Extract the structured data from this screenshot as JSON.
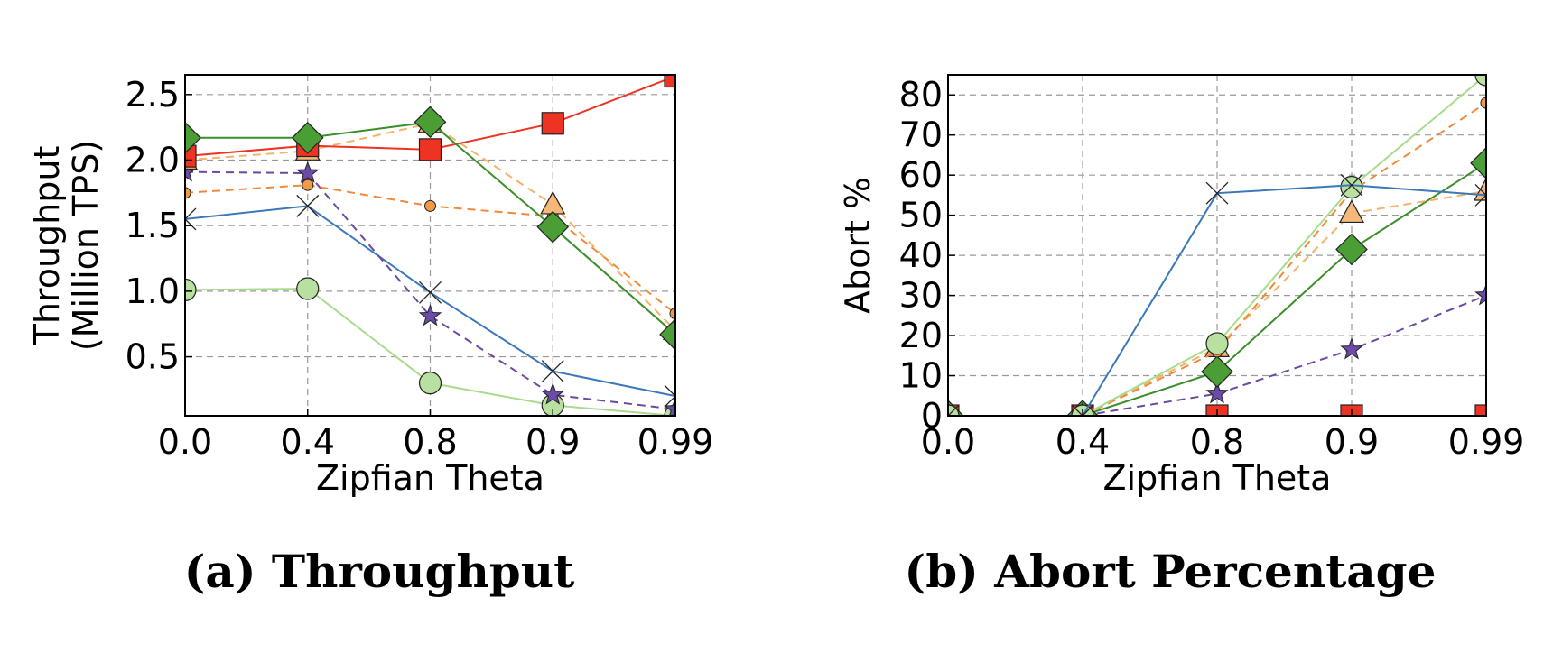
{
  "captions": {
    "a": "(a) Throughput",
    "b": "(b) Abort Percentage"
  },
  "styles": {
    "red": {
      "color": "#ee3322",
      "fill": "#ee3322",
      "marker": "square",
      "dash": false
    },
    "green": {
      "color": "#3a8f2a",
      "fill": "#4a9e35",
      "marker": "diamond",
      "dash": false
    },
    "lgreen": {
      "color": "#a8dc8c",
      "fill": "#b8e0a0",
      "marker": "circle",
      "dash": false
    },
    "blue": {
      "color": "#3a78b8",
      "fill": "none",
      "marker": "x",
      "dash": false
    },
    "orange": {
      "color": "#f08a3a",
      "fill": "#f39a48",
      "marker": "dot",
      "dash": true
    },
    "peach": {
      "color": "#f5b26a",
      "fill": "#f5b878",
      "marker": "triangle",
      "dash": true
    },
    "purple": {
      "color": "#6a4aa0",
      "fill": "#6b4aa8",
      "marker": "star",
      "dash": true
    }
  },
  "chart_data": [
    {
      "type": "line",
      "xlabel": "Zipfian Theta",
      "ylabel": [
        "Throughput",
        "(Million TPS)"
      ],
      "categories": [
        "0.0",
        "0.4",
        "0.8",
        "0.9",
        "0.99"
      ],
      "ylim": [
        0.05,
        2.65
      ],
      "yticks": [
        "0.5",
        "1.0",
        "1.5",
        "2.0",
        "2.5"
      ],
      "grid": true,
      "series": [
        {
          "style": "lgreen",
          "values": [
            1.01,
            1.02,
            0.3,
            0.13,
            0.05
          ]
        },
        {
          "style": "blue",
          "values": [
            1.55,
            1.65,
            0.99,
            0.39,
            0.2
          ]
        },
        {
          "style": "purple",
          "values": [
            1.91,
            1.9,
            0.81,
            0.21,
            0.1
          ]
        },
        {
          "style": "orange",
          "values": [
            1.75,
            1.81,
            1.65,
            1.57,
            0.83
          ]
        },
        {
          "style": "peach",
          "values": [
            2.0,
            2.07,
            2.28,
            1.66,
            0.7
          ]
        },
        {
          "style": "red",
          "values": [
            2.03,
            2.11,
            2.08,
            2.28,
            2.64
          ]
        },
        {
          "style": "green",
          "values": [
            2.17,
            2.17,
            2.29,
            1.49,
            0.67
          ]
        }
      ]
    },
    {
      "type": "line",
      "xlabel": "Zipfian Theta",
      "ylabel": [
        "Abort %"
      ],
      "categories": [
        "0.0",
        "0.4",
        "0.8",
        "0.9",
        "0.99"
      ],
      "ylim": [
        0,
        85
      ],
      "yticks": [
        "0",
        "10",
        "20",
        "30",
        "40",
        "50",
        "60",
        "70",
        "80"
      ],
      "grid": true,
      "series": [
        {
          "style": "red",
          "values": [
            0,
            0,
            0,
            0,
            0
          ]
        },
        {
          "style": "purple",
          "values": [
            0,
            0,
            5.5,
            16.5,
            30
          ]
        },
        {
          "style": "green",
          "values": [
            0,
            0,
            11,
            41.5,
            63
          ]
        },
        {
          "style": "peach",
          "values": [
            0,
            0,
            17,
            50.5,
            56
          ]
        },
        {
          "style": "orange",
          "values": [
            0,
            0,
            16,
            56,
            78
          ]
        },
        {
          "style": "lgreen",
          "values": [
            0,
            0,
            18,
            57,
            85
          ]
        },
        {
          "style": "blue",
          "values": [
            0,
            0,
            55.5,
            57.5,
            55
          ]
        }
      ]
    }
  ]
}
